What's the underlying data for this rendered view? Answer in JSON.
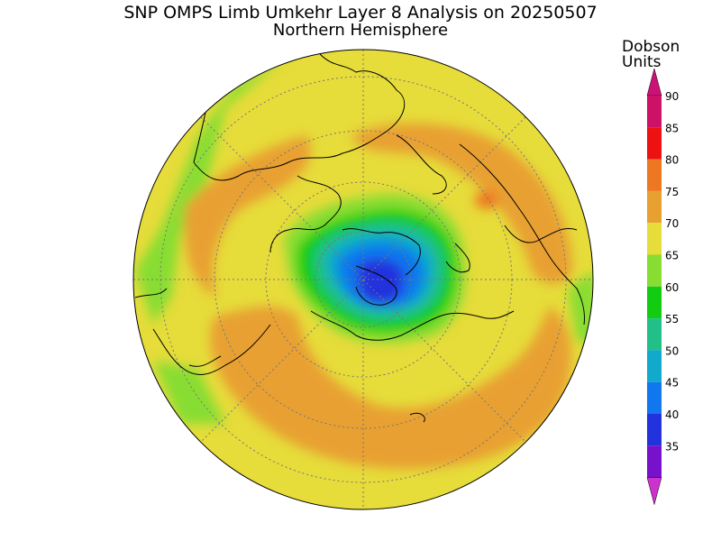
{
  "title": "SNP OMPS Limb Umkehr Layer 8 Analysis on 20250507",
  "subtitle": "Northern Hemisphere",
  "colorbar": {
    "unit_line1": "Dobson",
    "unit_line2": "Units",
    "levels": [
      {
        "value": "90",
        "color": "#cc1166"
      },
      {
        "value": "85",
        "color": "#ee1111"
      },
      {
        "value": "80",
        "color": "#ee7722"
      },
      {
        "value": "75",
        "color": "#e8a030"
      },
      {
        "value": "70",
        "color": "#e6dc3a"
      },
      {
        "value": "65",
        "color": "#88dd33"
      },
      {
        "value": "60",
        "color": "#11cc11"
      },
      {
        "value": "55",
        "color": "#22c088"
      },
      {
        "value": "50",
        "color": "#11aacc"
      },
      {
        "value": "45",
        "color": "#1177ee"
      },
      {
        "value": "40",
        "color": "#2233dd"
      },
      {
        "value": "35",
        "color": "#7711cc"
      }
    ],
    "top_arrow_color": "#cc1177",
    "bottom_arrow_color": "#cc33cc"
  },
  "map": {
    "projection": "north-polar-stereographic",
    "background_color": "#e6dc3a"
  }
}
